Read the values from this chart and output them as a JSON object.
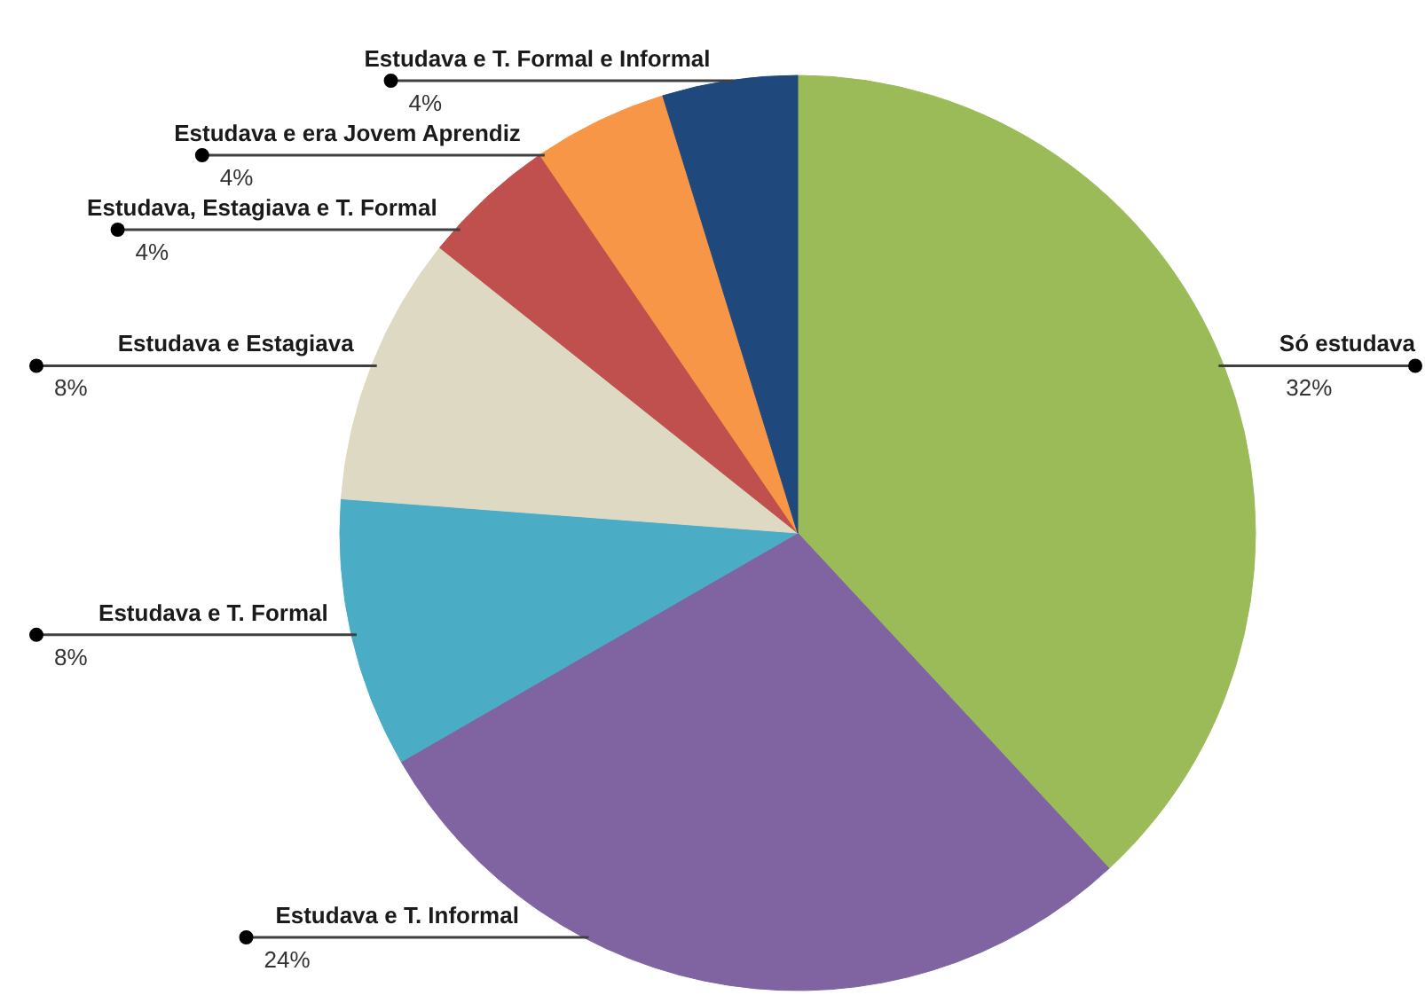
{
  "chart_data": {
    "type": "pie",
    "categories": [
      "Só estudava",
      "Estudava e T. Informal",
      "Estudava e T. Formal",
      "Estudava e Estagiava",
      "Estudava, Estagiava e T. Formal",
      "Estudava e era Jovem Aprendiz",
      "Estudava e T. Formal e Informal"
    ],
    "values": [
      32,
      24,
      8,
      8,
      4,
      4,
      4
    ],
    "value_labels": [
      "32%",
      "24%",
      "8%",
      "8%",
      "4%",
      "4%",
      "4%"
    ],
    "colors": [
      "#9bbb59",
      "#8064a2",
      "#4bacc6",
      "#ddd9c3",
      "#c0504d",
      "#f79646",
      "#1f497d"
    ]
  }
}
